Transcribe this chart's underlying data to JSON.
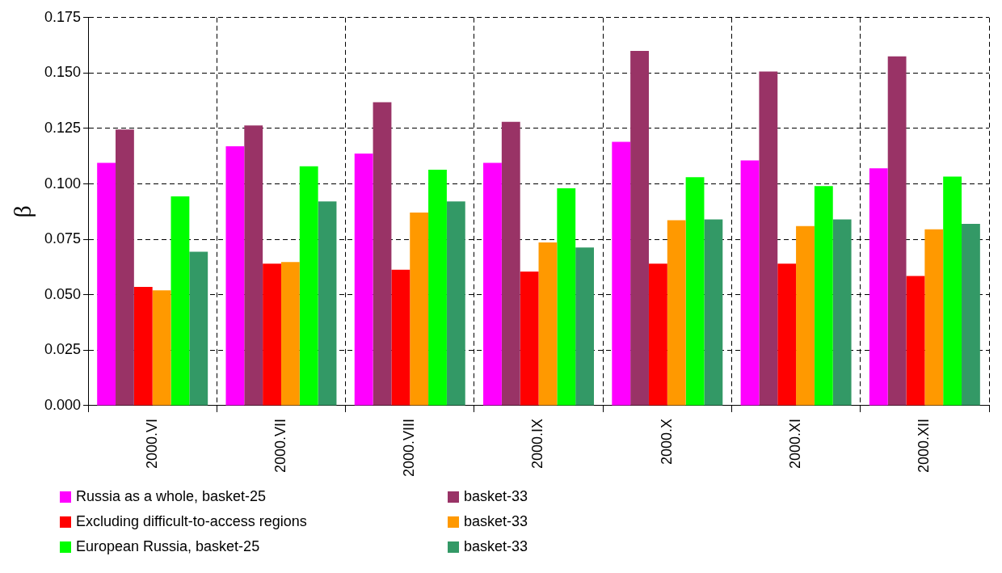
{
  "chart_data": {
    "type": "bar",
    "ylabel": "β",
    "categories": [
      "2000.VI",
      "2000.VII",
      "2000.VIII",
      "2000.IX",
      "2000.X",
      "2000.XI",
      "2000.XII"
    ],
    "series": [
      {
        "name": "Russia as a whole, basket-25",
        "color": "#ff00ff",
        "values": [
          0.1095,
          0.117,
          0.1137,
          0.1095,
          0.119,
          0.1106,
          0.107
        ]
      },
      {
        "name": "basket-33",
        "color": "#993366",
        "values": [
          0.1245,
          0.1264,
          0.1368,
          0.128,
          0.16,
          0.1507,
          0.1575
        ]
      },
      {
        "name": "Excluding difficult-to-access regions",
        "color": "#ff0000",
        "values": [
          0.0536,
          0.064,
          0.0613,
          0.0605,
          0.064,
          0.064,
          0.0585
        ]
      },
      {
        "name": "basket-33",
        "color": "#ff9900",
        "values": [
          0.052,
          0.0648,
          0.0871,
          0.0736,
          0.0836,
          0.081,
          0.0795
        ]
      },
      {
        "name": "European Russia, basket-25",
        "color": "#00ff00",
        "values": [
          0.0944,
          0.108,
          0.1064,
          0.098,
          0.103,
          0.099,
          0.1033
        ]
      },
      {
        "name": "basket-33",
        "color": "#339966",
        "values": [
          0.0694,
          0.0921,
          0.0921,
          0.0713,
          0.084,
          0.084,
          0.082
        ]
      }
    ],
    "ylim": [
      0,
      0.175
    ],
    "yticks": [
      {
        "value": 0,
        "label": "0.000"
      },
      {
        "value": 0.025,
        "label": "0.025"
      },
      {
        "value": 0.05,
        "label": "0.050"
      },
      {
        "value": 0.075,
        "label": "0.075"
      },
      {
        "value": 0.1,
        "label": "0.100"
      },
      {
        "value": 0.125,
        "label": "0.125"
      },
      {
        "value": 0.15,
        "label": "0.150"
      },
      {
        "value": 0.175,
        "label": "0.175"
      }
    ],
    "grid": true,
    "legend": "bottom"
  }
}
